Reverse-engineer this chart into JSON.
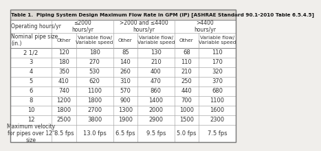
{
  "title": "Table 1.  Piping System Design Maximum Flow Rate in GPM (IP) [ASHRAE Standard 90.1-2010 Table 6.5.4.5]",
  "data_rows": [
    [
      "2 1/2",
      "120",
      "180",
      "85",
      "130",
      "68",
      "110"
    ],
    [
      "3",
      "180",
      "270",
      "140",
      "210",
      "110",
      "170"
    ],
    [
      "4",
      "350",
      "530",
      "260",
      "400",
      "210",
      "320"
    ],
    [
      "5",
      "410",
      "620",
      "310",
      "470",
      "250",
      "370"
    ],
    [
      "6",
      "740",
      "1100",
      "570",
      "860",
      "440",
      "680"
    ],
    [
      "8",
      "1200",
      "1800",
      "900",
      "1400",
      "700",
      "1100"
    ],
    [
      "10",
      "1800",
      "2700",
      "1300",
      "2000",
      "1000",
      "1600"
    ],
    [
      "12",
      "2500",
      "3800",
      "1900",
      "2900",
      "1500",
      "2300"
    ]
  ],
  "footer_row": [
    "Maximum velocity\nfor pipes over 12\"\nsize",
    "8.5 fps",
    "13.0 fps",
    "6.5 fps",
    "9.5 fps",
    "5.0 fps",
    "7.5 fps"
  ],
  "col_widths_rel": [
    1.55,
    0.9,
    1.38,
    0.9,
    1.38,
    0.9,
    1.38
  ],
  "bg_color": "#f0eeeb",
  "table_bg": "#ffffff",
  "title_bg": "#dedad5",
  "line_color": "#aaaaaa",
  "text_color": "#333333",
  "title_fontsize": 5.2,
  "header_fontsize": 5.5,
  "data_fontsize": 6.0,
  "footer_fontsize": 5.5
}
